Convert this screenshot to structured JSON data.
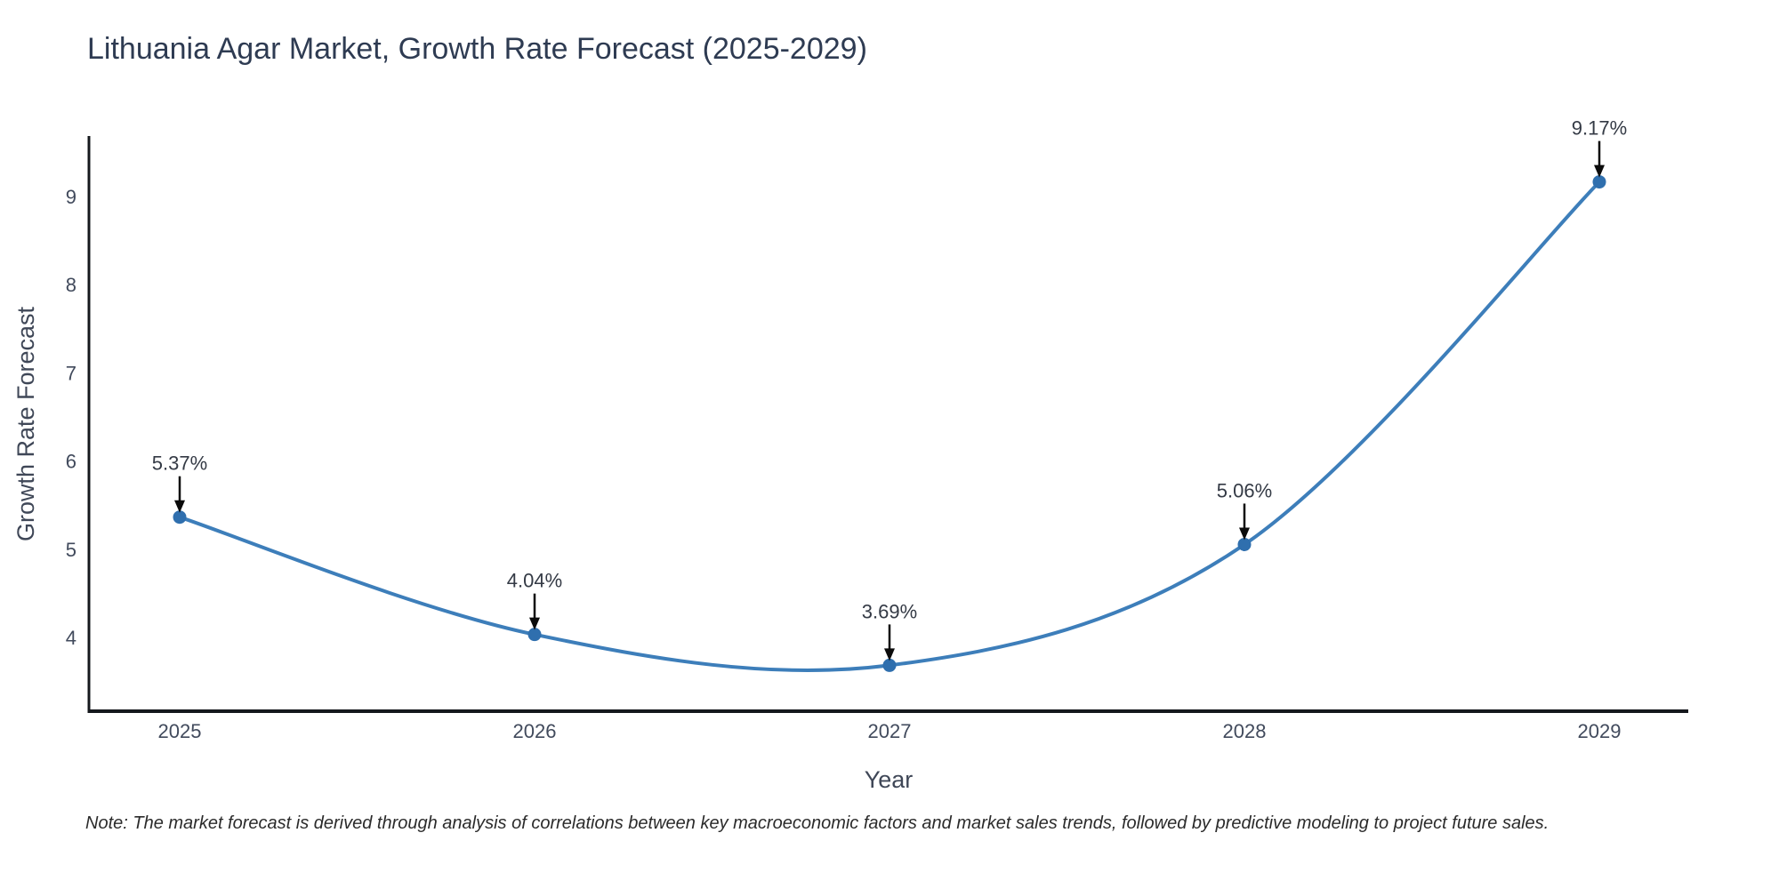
{
  "title": "Lithuania Agar Market, Growth Rate Forecast (2025-2029)",
  "note": "Note: The market forecast is derived through analysis of correlations between key macroeconomic factors and market sales trends, followed by predictive modeling to project future sales.",
  "chart_data": {
    "type": "line",
    "title": "Lithuania Agar Market, Growth Rate Forecast (2025-2029)",
    "xlabel": "Year",
    "ylabel": "Growth Rate Forecast",
    "categories": [
      "2025",
      "2026",
      "2027",
      "2028",
      "2029"
    ],
    "series": [
      {
        "name": "Growth Rate Forecast",
        "values": [
          5.37,
          4.04,
          3.69,
          5.06,
          9.17
        ],
        "point_labels": [
          "5.37%",
          "4.04%",
          "3.69%",
          "5.06%",
          "9.17%"
        ]
      }
    ],
    "yticks": [
      4,
      5,
      6,
      7,
      8,
      9
    ],
    "ylim": [
      3.17,
      9.67
    ],
    "line_shape": "spline",
    "grid": false,
    "legend": "none",
    "colors": {
      "line": "#3d7eba",
      "marker": "#2f6fae",
      "axis": "#15181d",
      "tick_label": "#414a5c",
      "annotation_arrow": "#0b0b0b"
    }
  }
}
